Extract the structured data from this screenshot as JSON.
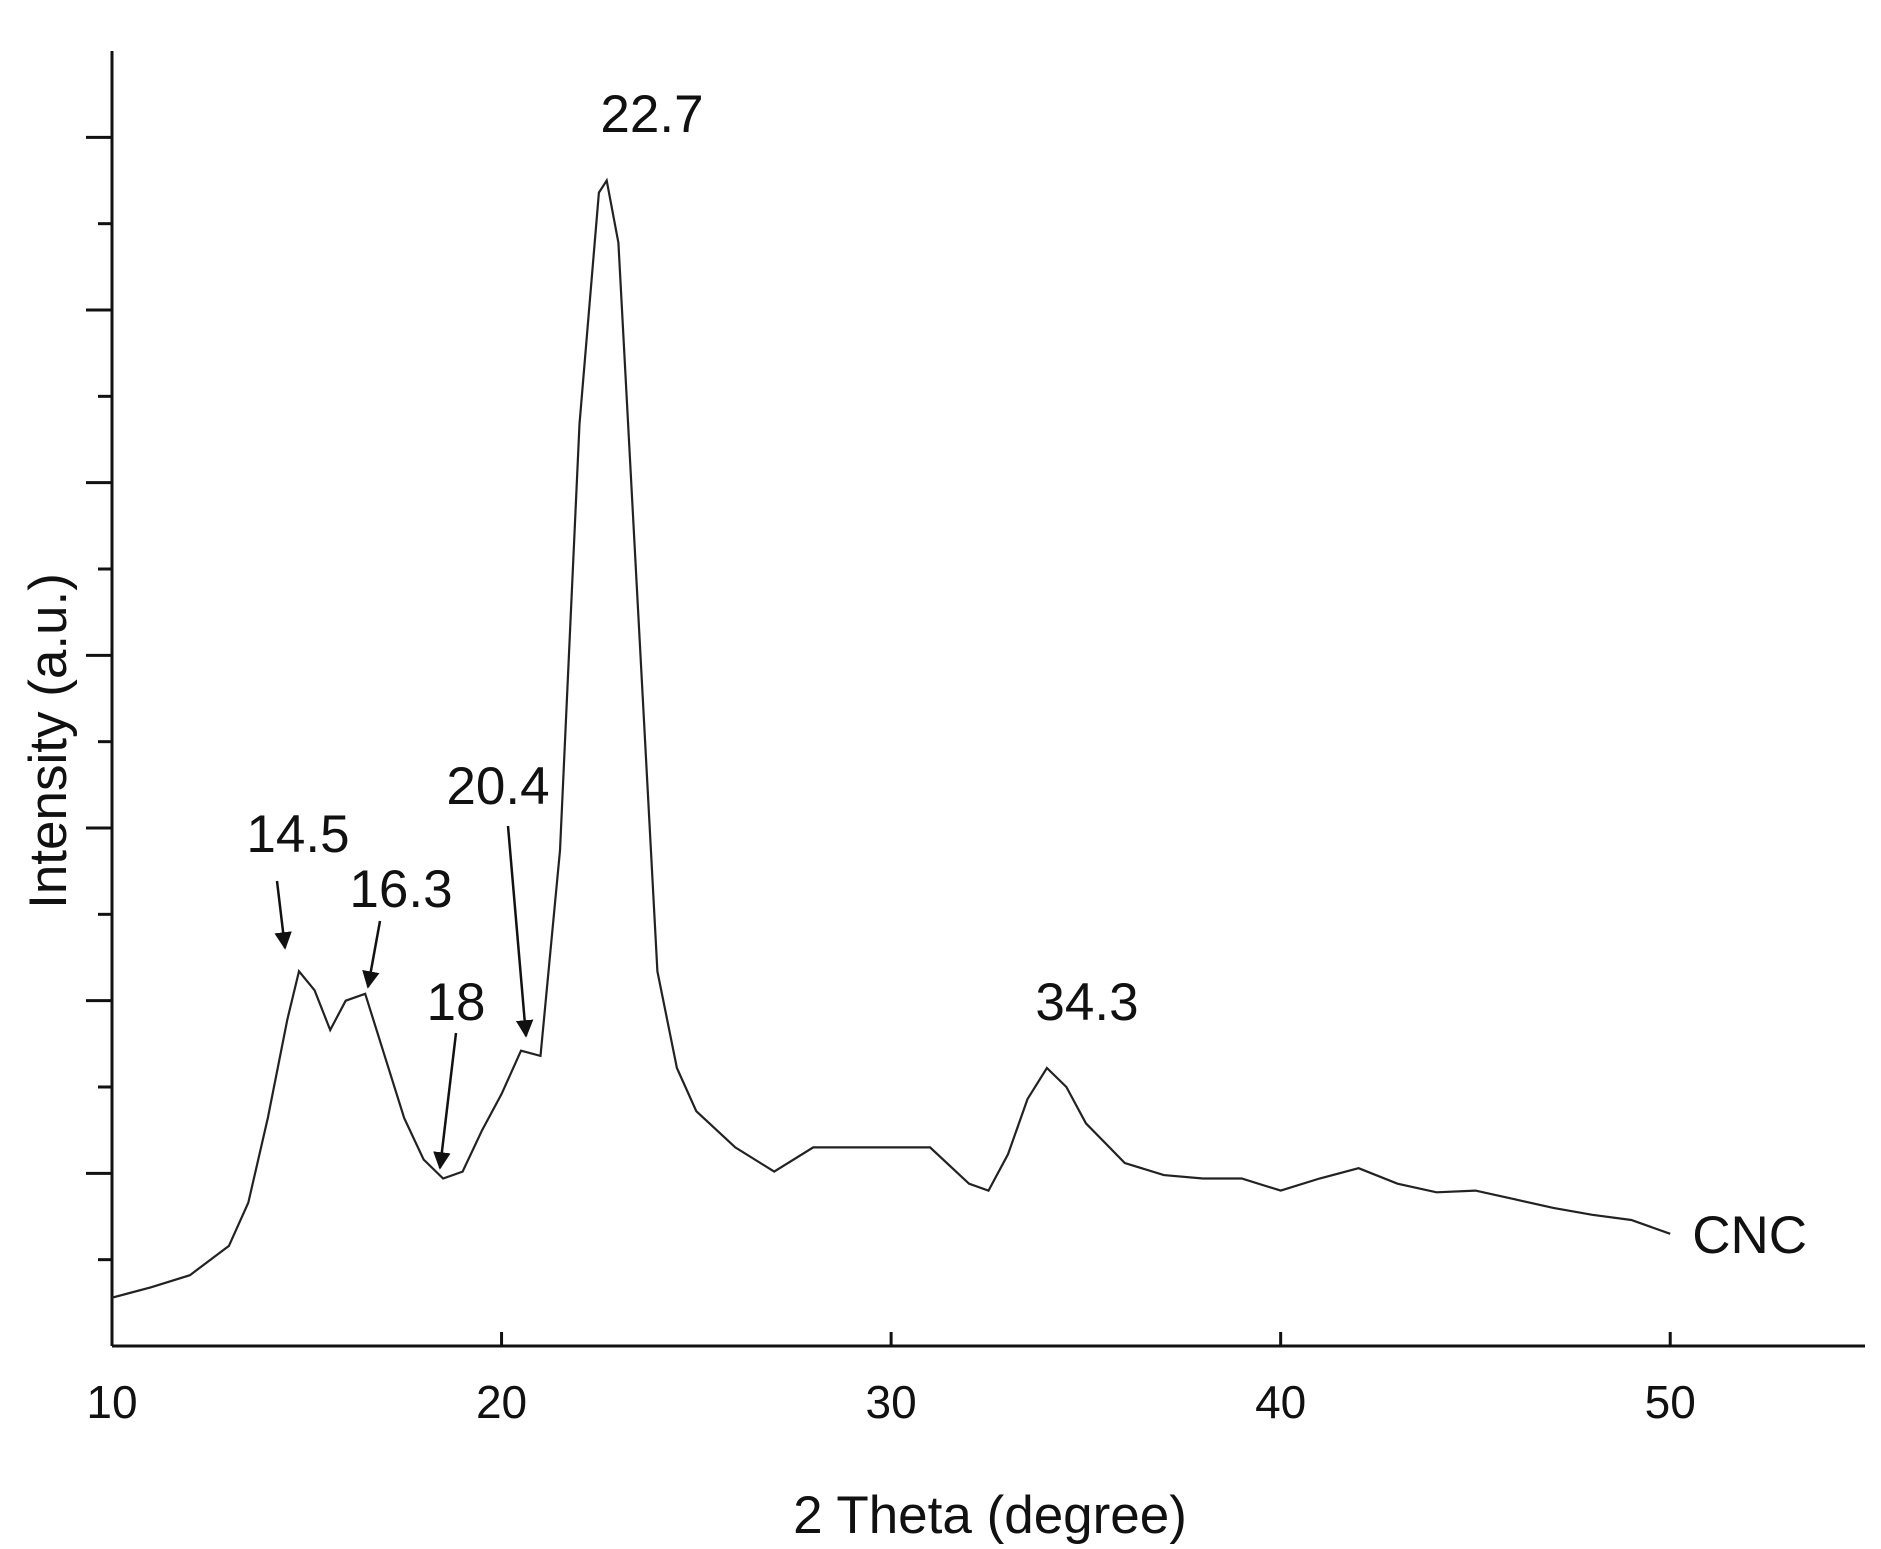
{
  "chart_data": {
    "type": "line",
    "x_label": "2 Theta (degree)",
    "y_label": "Intensity (a.u.)",
    "xlim": [
      10,
      55
    ],
    "xticks": [
      10,
      20,
      30,
      40,
      50
    ],
    "ylim": [
      0,
      7.5
    ],
    "yticks": [
      0.5,
      1,
      1.5,
      2,
      2.5,
      3,
      3.5,
      4,
      4.5,
      5,
      5.5,
      6,
      6.5,
      7
    ],
    "series": [
      {
        "name": "CNC",
        "color": "#222222",
        "x": [
          10,
          11,
          12,
          13,
          13.5,
          14,
          14.5,
          14.8,
          15.2,
          15.6,
          16,
          16.5,
          17,
          17.5,
          18,
          18.5,
          19,
          19.5,
          20,
          20.5,
          21,
          21.5,
          22,
          22.5,
          22.7,
          23,
          23.5,
          24,
          24.5,
          25,
          26,
          27,
          28,
          29,
          30,
          31,
          32,
          32.5,
          33,
          33.5,
          34,
          34.5,
          35,
          36,
          37,
          38,
          39,
          40,
          41,
          42,
          43,
          44,
          45,
          46,
          47,
          48,
          49,
          50
        ],
        "values": [
          0.28,
          0.34,
          0.41,
          0.58,
          0.83,
          1.32,
          1.89,
          2.17,
          2.06,
          1.83,
          2.0,
          2.04,
          1.68,
          1.32,
          1.08,
          0.97,
          1.01,
          1.25,
          1.46,
          1.71,
          1.68,
          2.87,
          5.34,
          6.68,
          6.75,
          6.39,
          4.28,
          2.17,
          1.61,
          1.36,
          1.15,
          1.01,
          1.15,
          1.15,
          1.15,
          1.15,
          0.94,
          0.9,
          1.11,
          1.43,
          1.61,
          1.5,
          1.29,
          1.06,
          0.99,
          0.97,
          0.97,
          0.9,
          0.97,
          1.03,
          0.94,
          0.89,
          0.9,
          0.85,
          0.8,
          0.76,
          0.73,
          0.65
        ]
      }
    ],
    "annotations": [
      "22.7",
      "14.5",
      "16.3",
      "18",
      "20.4",
      "34.3"
    ]
  }
}
